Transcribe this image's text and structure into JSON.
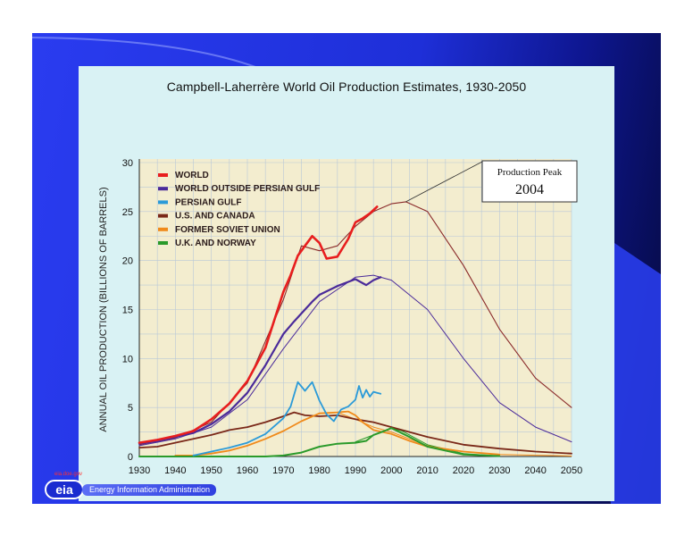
{
  "colors": {
    "world": "#e81e1e",
    "outside_gulf": "#4a2a9a",
    "persian_gulf": "#2a9ad8",
    "us_canada": "#7a2818",
    "soviet": "#f08a1a",
    "uk_norway": "#2a9a2a",
    "projection": "#8a2a2a"
  },
  "footer": {
    "logo": "eia",
    "url": "eia.doe.gov",
    "org": "Energy Information Administration"
  },
  "chart_data": {
    "type": "line",
    "title": "Campbell-Laherrère World Oil Production Estimates, 1930-2050",
    "ylabel": "ANNUAL OIL PRODUCTION (BILLIONS OF BARRELS)",
    "xlabel": "",
    "xlim": [
      1930,
      2050
    ],
    "ylim": [
      0,
      30
    ],
    "xticks": [
      1930,
      1940,
      1950,
      1960,
      1970,
      1980,
      1990,
      2000,
      2010,
      2020,
      2030,
      2040,
      2050
    ],
    "yticks": [
      0,
      5,
      10,
      15,
      20,
      25,
      30
    ],
    "grid": true,
    "legend_position": "top-left",
    "annotation": {
      "line1": "Production Peak",
      "line2": "2004",
      "x": 2004,
      "y": 26
    },
    "series": [
      {
        "name": "WORLD",
        "key": "world",
        "x": [
          1930,
          1935,
          1940,
          1945,
          1950,
          1955,
          1960,
          1965,
          1970,
          1972,
          1974,
          1976,
          1978,
          1980,
          1982,
          1985,
          1988,
          1990,
          1992,
          1994,
          1996
        ],
        "y": [
          1.4,
          1.7,
          2.1,
          2.6,
          3.8,
          5.4,
          7.7,
          11.1,
          16.8,
          18.5,
          20.5,
          21.5,
          22.5,
          21.8,
          20.2,
          20.4,
          22.2,
          23.9,
          24.3,
          24.8,
          25.5
        ]
      },
      {
        "name": "WORLD OUTSIDE PERSIAN GULF",
        "key": "outside_gulf",
        "x": [
          1930,
          1935,
          1940,
          1945,
          1950,
          1955,
          1960,
          1965,
          1970,
          1973,
          1975,
          1978,
          1980,
          1985,
          1990,
          1993,
          1995,
          1997
        ],
        "y": [
          1.3,
          1.6,
          2.0,
          2.4,
          3.3,
          4.6,
          6.5,
          9.3,
          12.5,
          13.8,
          14.6,
          15.8,
          16.5,
          17.4,
          18.1,
          17.5,
          18.0,
          18.3
        ]
      },
      {
        "name": "PERSIAN GULF",
        "key": "persian_gulf",
        "x": [
          1945,
          1950,
          1955,
          1960,
          1965,
          1970,
          1972,
          1974,
          1976,
          1978,
          1980,
          1982,
          1984,
          1986,
          1988,
          1990,
          1991,
          1992,
          1993,
          1994,
          1995,
          1996,
          1997
        ],
        "y": [
          0.1,
          0.5,
          0.9,
          1.4,
          2.3,
          3.9,
          5.1,
          7.6,
          6.7,
          7.6,
          5.7,
          4.3,
          3.6,
          4.8,
          5.1,
          5.8,
          7.2,
          6.0,
          6.8,
          6.1,
          6.6,
          6.5,
          6.4
        ]
      },
      {
        "name": "U.S. AND CANADA",
        "key": "us_canada",
        "x": [
          1930,
          1935,
          1940,
          1945,
          1950,
          1955,
          1960,
          1965,
          1970,
          1973,
          1976,
          1980,
          1985,
          1990,
          1995,
          2000,
          2010,
          2020,
          2030,
          2040,
          2050
        ],
        "y": [
          0.9,
          1.0,
          1.4,
          1.8,
          2.2,
          2.7,
          3.0,
          3.5,
          4.1,
          4.5,
          4.2,
          4.1,
          4.2,
          3.8,
          3.5,
          3.0,
          2.0,
          1.2,
          0.8,
          0.5,
          0.3
        ]
      },
      {
        "name": "FORMER SOVIET UNION",
        "key": "soviet",
        "x": [
          1940,
          1945,
          1950,
          1955,
          1960,
          1965,
          1970,
          1975,
          1980,
          1985,
          1988,
          1990,
          1992,
          1995,
          2000,
          2005,
          2010,
          2020,
          2030
        ],
        "y": [
          0.1,
          0.1,
          0.3,
          0.6,
          1.1,
          1.8,
          2.6,
          3.6,
          4.4,
          4.5,
          4.6,
          4.2,
          3.5,
          2.7,
          2.3,
          1.6,
          1.0,
          0.5,
          0.2
        ]
      },
      {
        "name": "U.K. AND NORWAY",
        "key": "uk_norway",
        "x": [
          1930,
          1965,
          1970,
          1975,
          1980,
          1985,
          1990,
          1993,
          1995,
          1998,
          2000,
          2005,
          2010,
          2020,
          2030
        ],
        "y": [
          0.0,
          0.0,
          0.1,
          0.4,
          1.0,
          1.3,
          1.4,
          1.6,
          2.2,
          2.6,
          2.9,
          2.0,
          1.0,
          0.2,
          0.05
        ]
      },
      {
        "name": "",
        "key": "projection_world",
        "x": [
          1930,
          1940,
          1950,
          1960,
          1970,
          1975,
          1980,
          1985,
          1990,
          1995,
          2000,
          2004,
          2010,
          2020,
          2030,
          2040,
          2050
        ],
        "y": [
          1.2,
          1.9,
          3.5,
          7.5,
          16.0,
          21.5,
          21.0,
          21.5,
          23.5,
          25.0,
          25.8,
          26.0,
          25.0,
          19.5,
          13.0,
          8.0,
          5.0
        ]
      },
      {
        "name": "",
        "key": "projection_outside",
        "x": [
          1930,
          1940,
          1950,
          1960,
          1970,
          1980,
          1990,
          1995,
          2000,
          2010,
          2020,
          2030,
          2040,
          2050
        ],
        "y": [
          1.1,
          1.8,
          3.0,
          5.8,
          11.0,
          15.8,
          18.3,
          18.5,
          18.0,
          15.0,
          10.0,
          5.5,
          3.0,
          1.5
        ]
      },
      {
        "name": "",
        "key": "projection_soviet",
        "x": [
          1985,
          1990,
          1995,
          2000,
          2005,
          2010,
          2020,
          2030,
          2050
        ],
        "y": [
          4.5,
          3.8,
          3.0,
          2.5,
          1.8,
          1.1,
          0.5,
          0.2,
          0.05
        ]
      },
      {
        "name": "",
        "key": "projection_uk",
        "x": [
          1990,
          1995,
          1998,
          2000,
          2003,
          2006,
          2010,
          2020,
          2030
        ],
        "y": [
          1.5,
          2.2,
          2.6,
          2.9,
          2.6,
          2.0,
          1.2,
          0.3,
          0.05
        ]
      }
    ]
  }
}
